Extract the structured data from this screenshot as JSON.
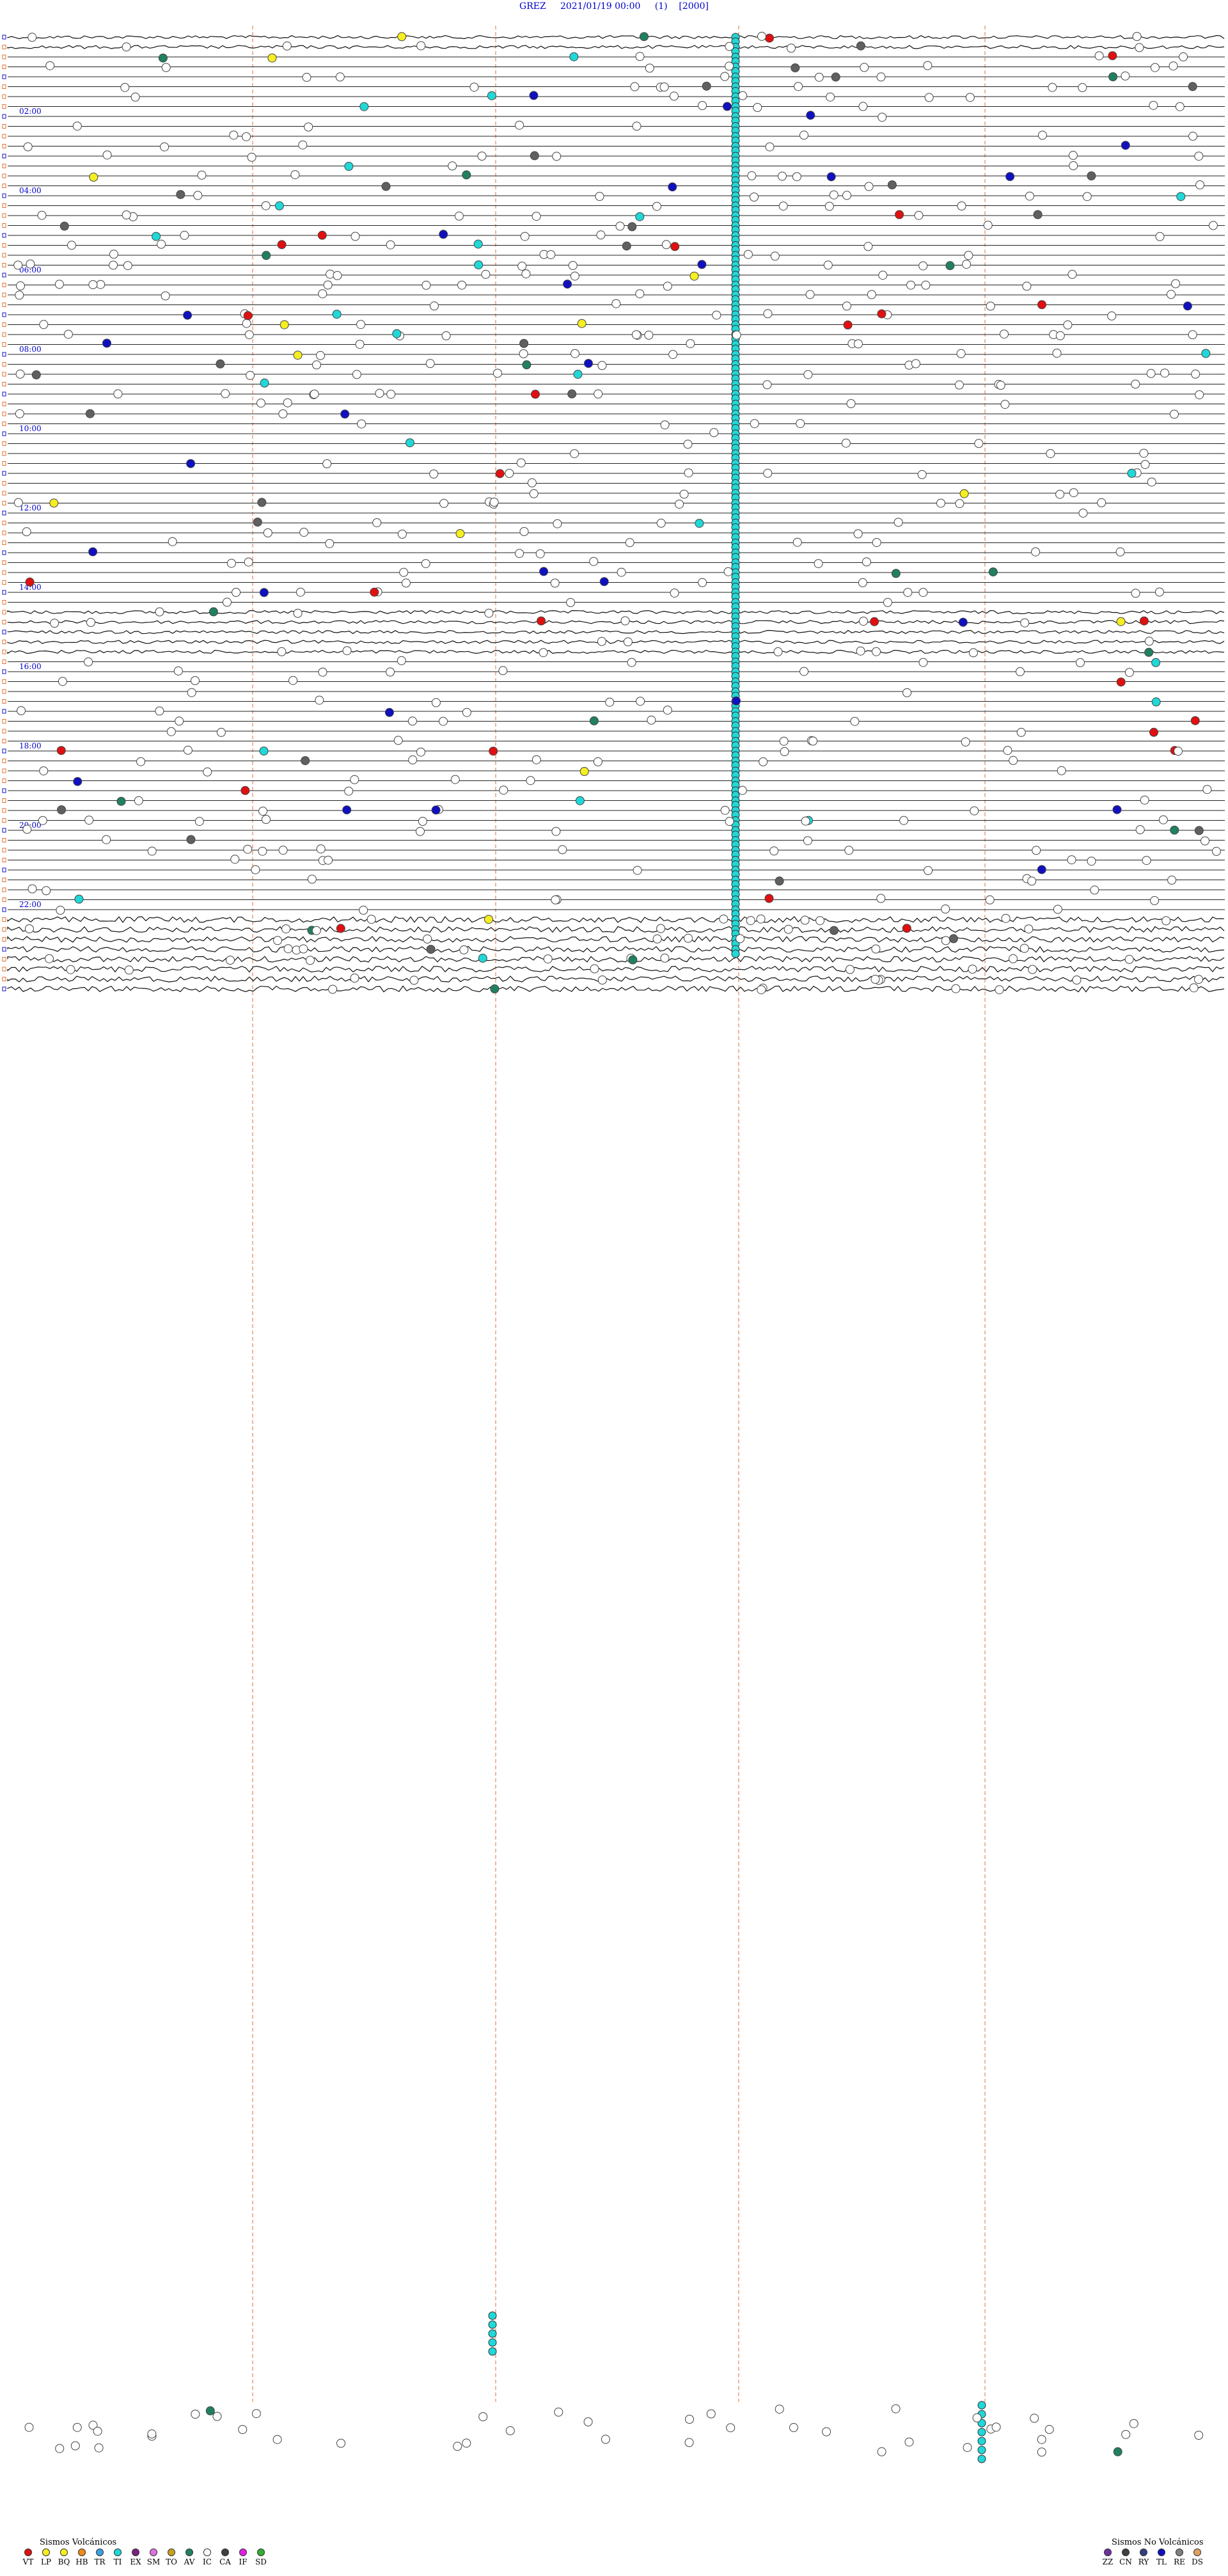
{
  "header": {
    "station": "GREZ",
    "datetime": "2021/01/19 00:00",
    "component": "(1)",
    "scale": "[2000]"
  },
  "hour_labels": [
    "02:00",
    "04:00",
    "06:00",
    "08:00",
    "10:00",
    "12:00",
    "14:00",
    "16:00",
    "18:00",
    "20:00",
    "22:00"
  ],
  "chart_data": {
    "type": "helicorder",
    "station": "GREZ",
    "start": "2021/01/19 00:00",
    "traces_per_hour": 4,
    "hour_labels": [
      "02:00",
      "04:00",
      "06:00",
      "08:00",
      "10:00",
      "12:00",
      "14:00",
      "16:00",
      "18:00",
      "20:00",
      "22:00"
    ]
  },
  "legend_volcanic": {
    "title": "Sismos Volcánicos",
    "items": [
      {
        "code": "VT",
        "color": "#e01010"
      },
      {
        "code": "LP",
        "color": "#f5ee20"
      },
      {
        "code": "BQ",
        "color": "#f5ee20"
      },
      {
        "code": "HB",
        "color": "#f08a18"
      },
      {
        "code": "TR",
        "color": "#3aa0e0"
      },
      {
        "code": "TI",
        "color": "#20d8d8"
      },
      {
        "code": "EX",
        "color": "#7a2080"
      },
      {
        "code": "SM",
        "color": "#e070e0"
      },
      {
        "code": "TO",
        "color": "#c8a020"
      },
      {
        "code": "AV",
        "color": "#208060"
      },
      {
        "code": "IC",
        "color": "#ffffff"
      },
      {
        "code": "CA",
        "color": "#404040"
      },
      {
        "code": "IF",
        "color": "#e020e0"
      },
      {
        "code": "SD",
        "color": "#30b030"
      }
    ]
  },
  "legend_nonvolcanic": {
    "title": "Sismos No Volcánicos",
    "items": [
      {
        "code": "ZZ",
        "color": "#7030a0"
      },
      {
        "code": "CN",
        "color": "#404040"
      },
      {
        "code": "RY",
        "color": "#304080"
      },
      {
        "code": "TL",
        "color": "#1010c0"
      },
      {
        "code": "RE",
        "color": "#808080"
      },
      {
        "code": "DS",
        "color": "#e0a060"
      }
    ]
  }
}
